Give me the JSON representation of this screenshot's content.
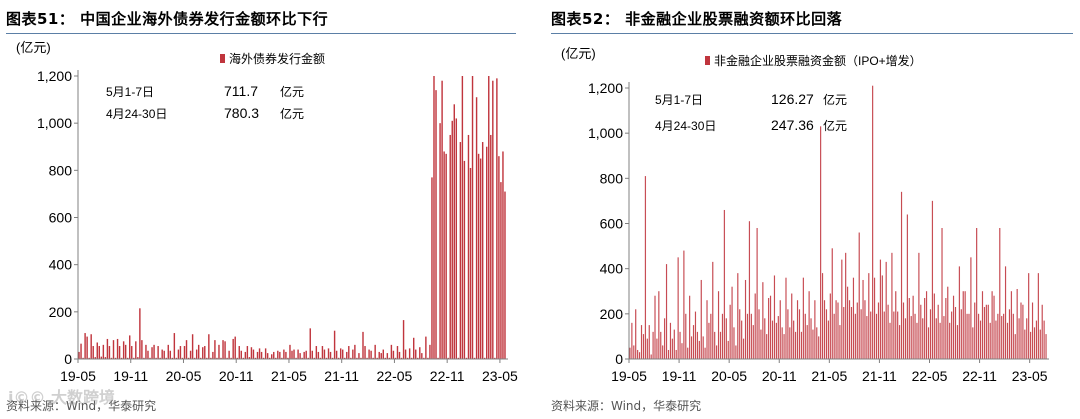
{
  "colors": {
    "bar": "#c0353d",
    "bar_light": "#e3a7ab",
    "rule": "#5b7fa6",
    "axis": "#808080"
  },
  "watermark": "i©© 大数跨境",
  "chart_data": [
    {
      "type": "bar",
      "title": "图表51：  中国企业海外债券发行金额环比下行",
      "ylabel": "(亿元)",
      "ylim": [
        0,
        1200
      ],
      "yticks": [
        0,
        200,
        400,
        600,
        800,
        "1,000",
        "1,200"
      ],
      "ytick_values": [
        0,
        200,
        400,
        600,
        800,
        1000,
        1200
      ],
      "xtick_labels": [
        "19-05",
        "19-11",
        "20-05",
        "20-11",
        "21-05",
        "21-11",
        "22-05",
        "22-11",
        "23-05"
      ],
      "xtick_index": [
        0,
        26,
        52,
        78,
        104,
        130,
        156,
        182,
        208
      ],
      "series": [
        {
          "name": "海外债券发行金额",
          "values": [
            30,
            65,
            5,
            110,
            95,
            5,
            105,
            55,
            8,
            70,
            55,
            10,
            60,
            8,
            85,
            55,
            5,
            80,
            5,
            85,
            55,
            5,
            75,
            60,
            5,
            100,
            55,
            5,
            75,
            8,
            215,
            80,
            5,
            60,
            35,
            5,
            50,
            60,
            5,
            55,
            5,
            40,
            35,
            5,
            60,
            35,
            5,
            110,
            5,
            40,
            55,
            5,
            55,
            80,
            5,
            35,
            105,
            5,
            40,
            60,
            5,
            50,
            55,
            5,
            105,
            5,
            30,
            80,
            5,
            60,
            5,
            80,
            75,
            5,
            35,
            5,
            85,
            95,
            5,
            55,
            35,
            5,
            30,
            55,
            8,
            50,
            40,
            5,
            30,
            45,
            30,
            5,
            45,
            25,
            5,
            20,
            30,
            5,
            35,
            30,
            5,
            40,
            30,
            5,
            60,
            35,
            40,
            5,
            40,
            25,
            5,
            30,
            35,
            5,
            130,
            35,
            5,
            55,
            30,
            5,
            55,
            40,
            5,
            45,
            30,
            5,
            120,
            35,
            5,
            45,
            40,
            5,
            30,
            55,
            5,
            40,
            60,
            5,
            25,
            5,
            115,
            55,
            5,
            40,
            35,
            5,
            60,
            5,
            30,
            25,
            40,
            5,
            25,
            5,
            60,
            35,
            5,
            55,
            30,
            5,
            165,
            40,
            5,
            45,
            5,
            90,
            40,
            5,
            50,
            25,
            5,
            95,
            5,
            60,
            770,
            1200,
            1140,
            5,
            1000,
            1180,
            880,
            870,
            5,
            950,
            1010,
            1080,
            1020,
            5,
            920,
            1200,
            840,
            5,
            950,
            810,
            1200,
            5,
            1110,
            870,
            850,
            920,
            5,
            900,
            1200,
            950,
            1180,
            5,
            1190,
            860,
            750,
            880,
            710
          ],
          "color": "#c0353d"
        }
      ],
      "legend": {
        "label": "海外债券发行金额",
        "position": "top-center"
      },
      "annotations": [
        {
          "label": "5月1-7日",
          "value": "711.7",
          "unit": "亿元"
        },
        {
          "label": "4月24-30日",
          "value": "780.3",
          "unit": "亿元"
        }
      ],
      "source": "资料来源：Wind，华泰研究"
    },
    {
      "type": "bar",
      "title": "图表52：  非金融企业股票融资额环比回落",
      "ylabel": "(亿元)",
      "ylim": [
        0,
        1300
      ],
      "yticks": [
        0,
        200,
        400,
        600,
        800,
        "1,000",
        "1,200"
      ],
      "ytick_values": [
        0,
        200,
        400,
        600,
        800,
        1000,
        1200
      ],
      "xtick_labels": [
        "19-05",
        "19-11",
        "20-05",
        "20-11",
        "21-05",
        "21-11",
        "22-05",
        "22-11",
        "23-05"
      ],
      "xtick_index": [
        0,
        26,
        52,
        78,
        104,
        130,
        156,
        182,
        208
      ],
      "series": [
        {
          "name": "非金融企业股票融资金额（IPO+增发）",
          "values": [
            50,
            160,
            60,
            220,
            40,
            30,
            150,
            110,
            810,
            90,
            150,
            20,
            120,
            280,
            90,
            300,
            120,
            60,
            180,
            420,
            40,
            160,
            90,
            130,
            40,
            450,
            120,
            70,
            480,
            200,
            50,
            280,
            100,
            150,
            210,
            120,
            80,
            350,
            100,
            50,
            260,
            160,
            200,
            430,
            120,
            60,
            300,
            120,
            200,
            660,
            180,
            80,
            240,
            320,
            140,
            60,
            380,
            220,
            170,
            90,
            350,
            200,
            610,
            200,
            150,
            290,
            580,
            220,
            130,
            340,
            180,
            110,
            270,
            280,
            170,
            370,
            160,
            190,
            260,
            140,
            110,
            360,
            220,
            140,
            290,
            170,
            120,
            260,
            220,
            120,
            360,
            200,
            150,
            300,
            180,
            130,
            260,
            140,
            100,
            1030,
            380,
            260,
            220,
            170,
            290,
            490,
            200,
            260,
            250,
            150,
            440,
            230,
            470,
            320,
            260,
            230,
            360,
            200,
            250,
            560,
            220,
            350,
            260,
            190,
            380,
            210,
            1210,
            360,
            200,
            250,
            440,
            370,
            210,
            430,
            240,
            160,
            470,
            210,
            300,
            210,
            150,
            740,
            250,
            180,
            640,
            270,
            190,
            280,
            200,
            160,
            470,
            240,
            180,
            270,
            300,
            140,
            220,
            700,
            290,
            180,
            240,
            160,
            580,
            190,
            270,
            320,
            160,
            210,
            280,
            230,
            150,
            410,
            220,
            300,
            300,
            200,
            200,
            450,
            140,
            250,
            580,
            200,
            170,
            300,
            230,
            240,
            240,
            160,
            300,
            280,
            170,
            200,
            580,
            190,
            200,
            410,
            160,
            220,
            300,
            200,
            110,
            310,
            180,
            250,
            240,
            130,
            180,
            380,
            120,
            250,
            140,
            170,
            380,
            130,
            240,
            170,
            110
          ],
          "color": "#c0353d"
        }
      ],
      "legend": {
        "label": "非金融企业股票融资金额（IPO+增发）",
        "position": "top-center"
      },
      "annotations": [
        {
          "label": "5月1-7日",
          "value": "126.27",
          "unit": "亿元"
        },
        {
          "label": "4月24-30日",
          "value": "247.36",
          "unit": "亿元"
        }
      ],
      "source": "资料来源：Wind，华泰研究"
    }
  ]
}
